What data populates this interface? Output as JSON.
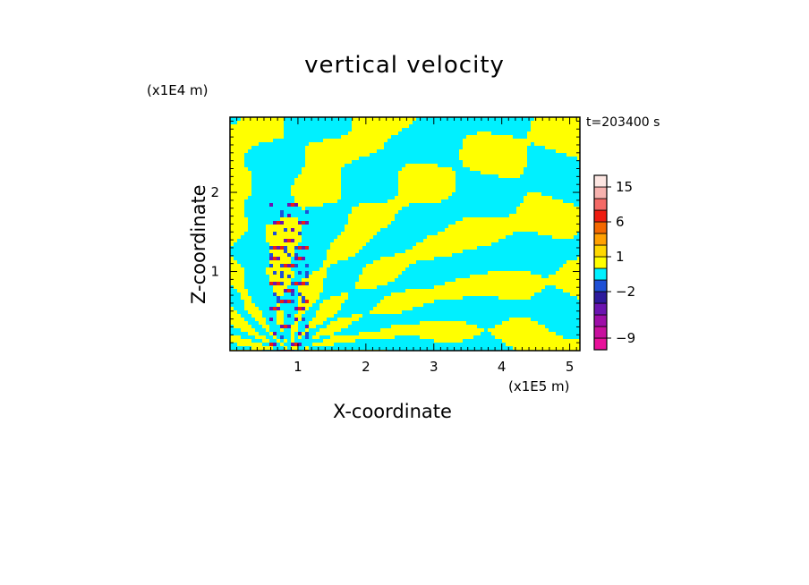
{
  "chart_data": {
    "type": "heatmap",
    "title": "vertical velocity",
    "xlabel": "X-coordinate",
    "ylabel": "Z-coordinate",
    "x_unit_label": "(x1E5 m)",
    "z_unit_label": "(x1E4 m)",
    "time_label": "t=203400 s",
    "xlim": [
      0,
      5.15
    ],
    "ylim": [
      0,
      2.95
    ],
    "x_ticks": [
      1,
      2,
      3,
      4,
      5
    ],
    "y_ticks": [
      1,
      2
    ],
    "grid": false,
    "colorbar": {
      "labeled_ticks": [
        15,
        6,
        1,
        -2,
        -9
      ],
      "bands": [
        {
          "lo": -12,
          "hi": -9,
          "color": "#e8109a"
        },
        {
          "lo": -9,
          "hi": -6,
          "color": "#c8109e"
        },
        {
          "lo": -6,
          "hi": -4,
          "color": "#9e0ea8"
        },
        {
          "lo": -4,
          "hi": -3,
          "color": "#6b14b0"
        },
        {
          "lo": -3,
          "hi": -2,
          "color": "#2d1a9c"
        },
        {
          "lo": -2,
          "hi": -1,
          "color": "#1e50d6"
        },
        {
          "lo": -1,
          "hi": 0,
          "color": "#00f0ff"
        },
        {
          "lo": 0,
          "hi": 1,
          "color": "#ffff00"
        },
        {
          "lo": 1,
          "hi": 2,
          "color": "#ffd800"
        },
        {
          "lo": 2,
          "hi": 4,
          "color": "#ffa000"
        },
        {
          "lo": 4,
          "hi": 6,
          "color": "#f46800"
        },
        {
          "lo": 6,
          "hi": 9,
          "color": "#ee1c10"
        },
        {
          "lo": 9,
          "hi": 12,
          "color": "#f46a66"
        },
        {
          "lo": 12,
          "hi": 15,
          "color": "#f7b2ae"
        },
        {
          "lo": 15,
          "hi": 20,
          "color": "#fde6e2"
        }
      ]
    },
    "dominant_values": {
      "positive_weak": "#ffff00",
      "negative_weak": "#00f0ff"
    },
    "strong_cells_near_x": 0.85
  }
}
